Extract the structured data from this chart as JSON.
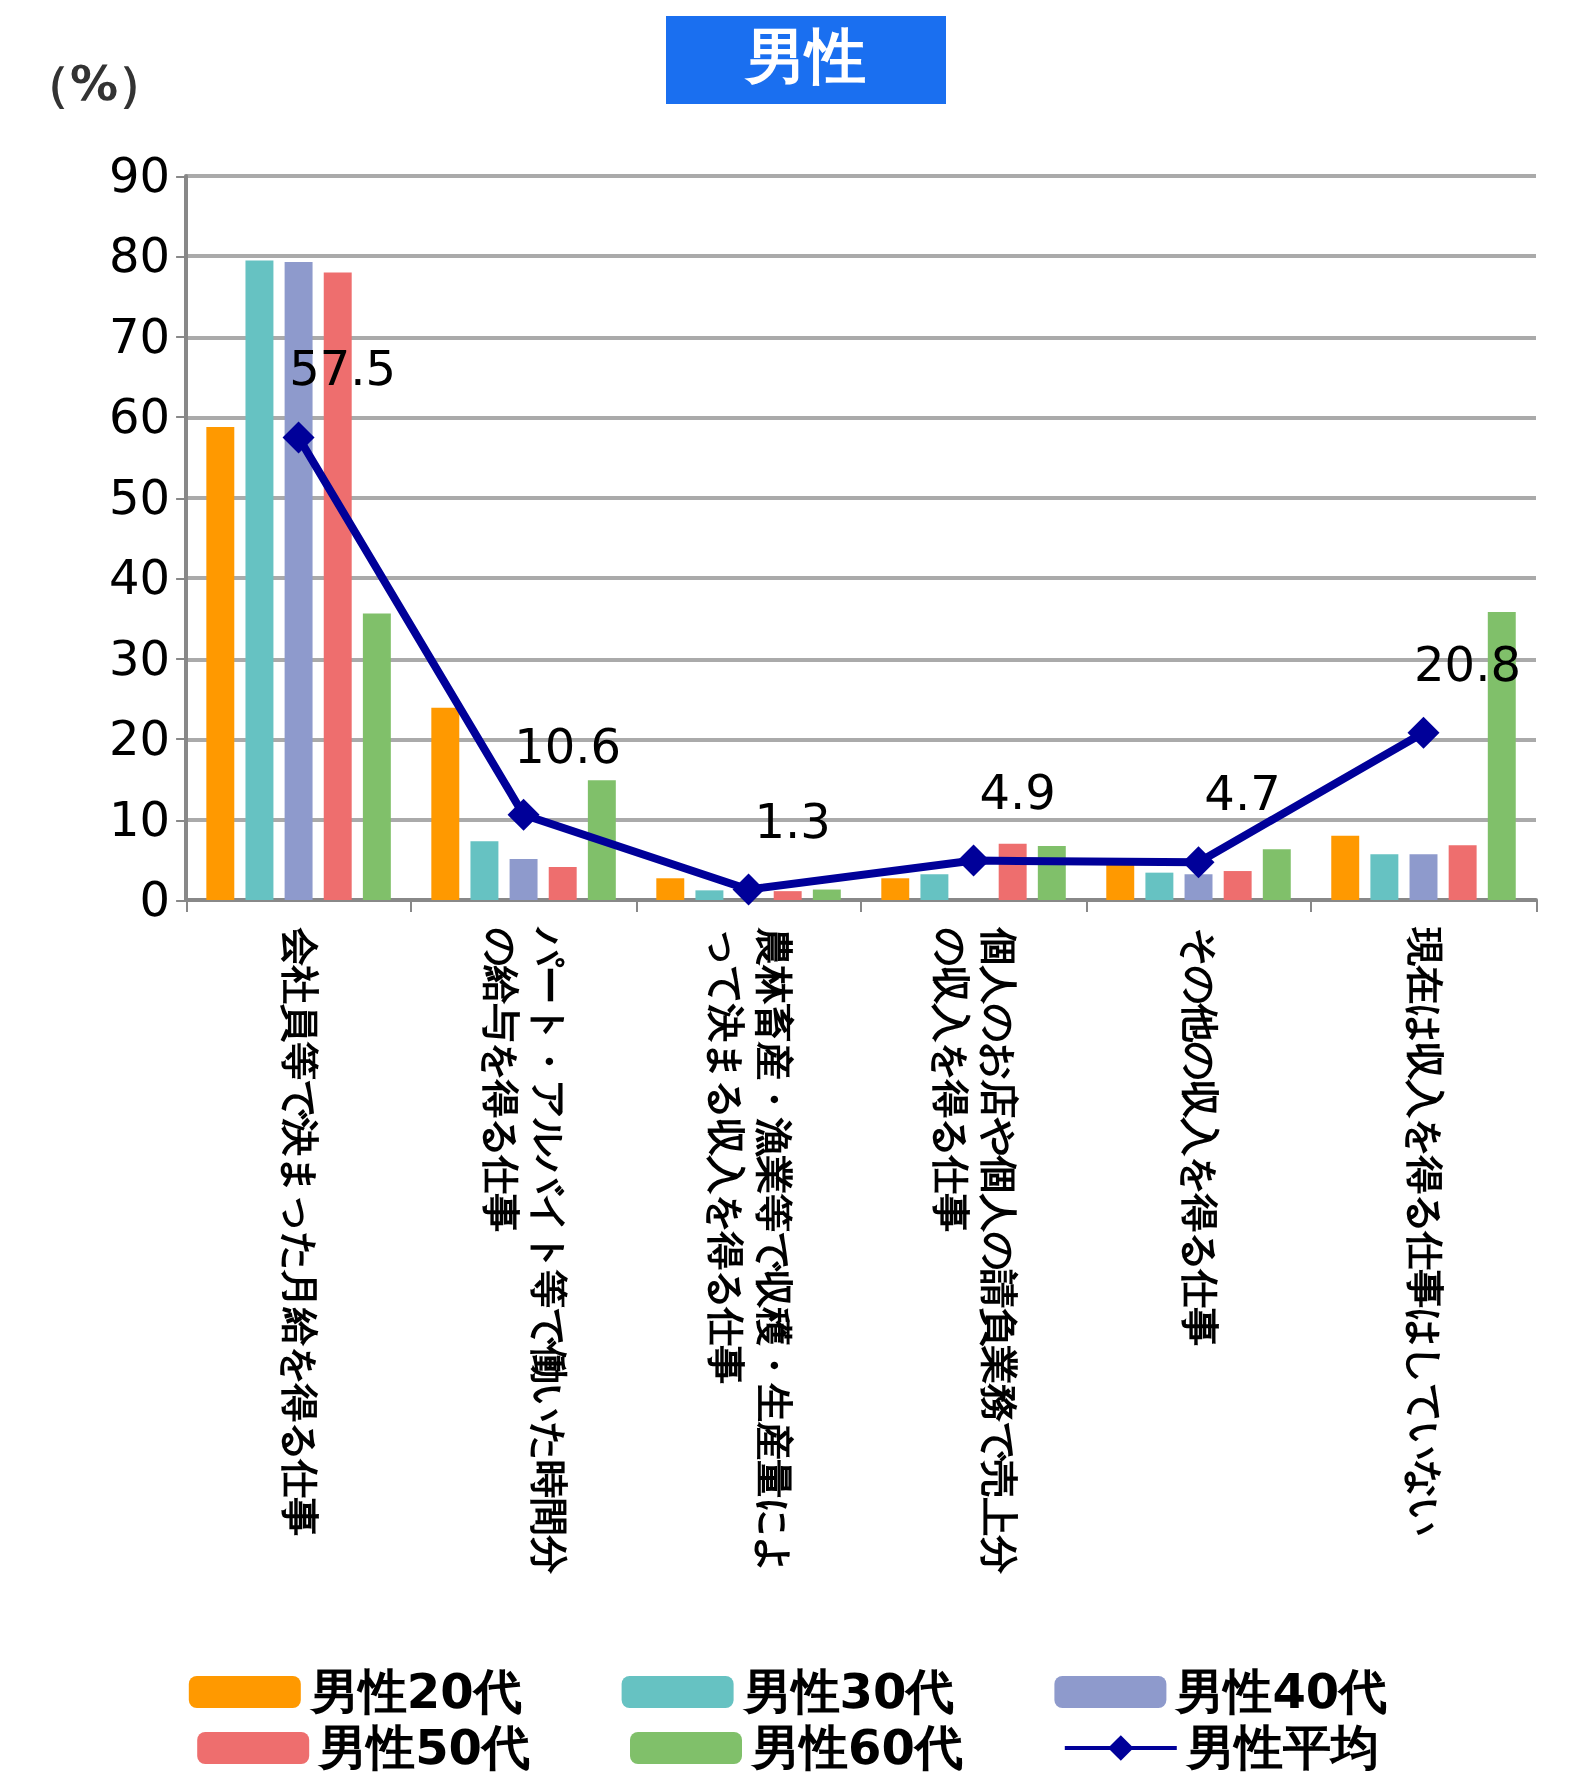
{
  "chart_data": {
    "type": "bar",
    "title": "男性",
    "ylabel": "（%）",
    "categories": [
      "会社員等で決まった月給を得る仕事",
      "パート・アルバイト等で働いた時間分の給与を得る仕事",
      "農林畜産・漁業等で収穫・生産量によって決まる収入を得る仕事",
      "個人のお店や個人の請負業務で売上分の収入を得る仕事",
      "その他の収入を得る仕事",
      "現在は収入を得る仕事はしていない"
    ],
    "series": [
      {
        "name": "男性20代",
        "color": "#ff9900",
        "values": [
          58.8,
          23.9,
          2.7,
          2.7,
          4.4,
          8.0
        ]
      },
      {
        "name": "男性30代",
        "color": "#66c2c2",
        "values": [
          79.5,
          7.3,
          1.2,
          3.2,
          3.4,
          5.7
        ]
      },
      {
        "name": "男性40代",
        "color": "#8e9acc",
        "values": [
          79.3,
          5.1,
          null,
          null,
          3.2,
          5.7
        ]
      },
      {
        "name": "男性50代",
        "color": "#ee6e6e",
        "values": [
          78.0,
          4.1,
          1.1,
          7.0,
          3.6,
          6.8
        ]
      },
      {
        "name": "男性60代",
        "color": "#80c06a",
        "values": [
          35.6,
          14.9,
          1.3,
          6.7,
          6.3,
          35.8
        ]
      },
      {
        "name": "男性平均",
        "type": "line",
        "color": "#000099",
        "marker": "diamond",
        "values": [
          57.5,
          10.6,
          1.3,
          4.9,
          4.7,
          20.8
        ],
        "value_labels": [
          "57.5",
          "10.6",
          "1.3",
          "4.9",
          "4.7",
          "20.8"
        ]
      }
    ],
    "ylim": [
      0,
      90
    ],
    "yticks": [
      0,
      10,
      20,
      30,
      40,
      50,
      60,
      70,
      80,
      90
    ],
    "grid": "y",
    "legend": "bottom"
  }
}
